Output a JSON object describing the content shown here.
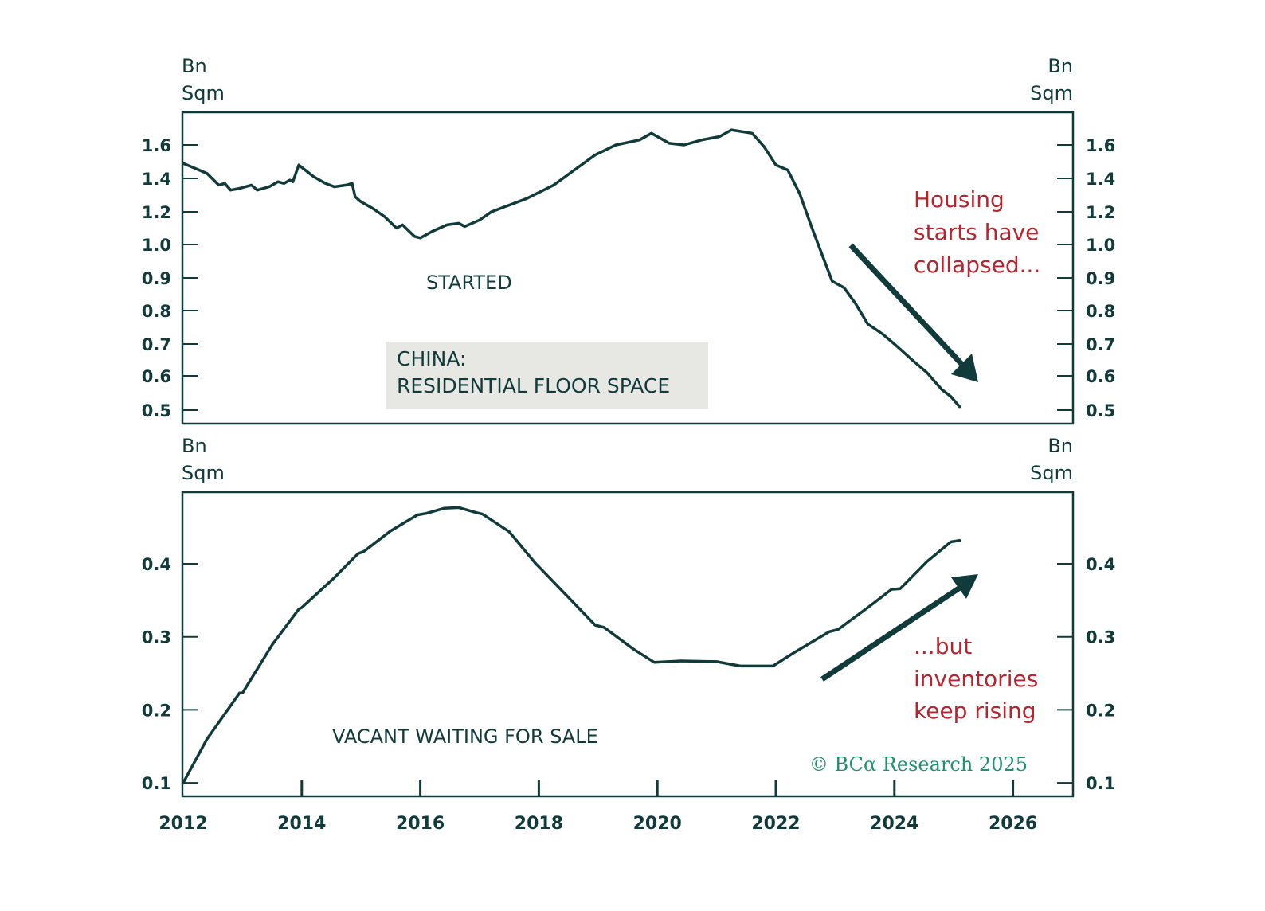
{
  "chart_data": [
    {
      "type": "line",
      "panel": "top",
      "title": "CHINA: RESIDENTIAL FLOOR SPACE",
      "title_lines": [
        "CHINA:",
        "RESIDENTIAL FLOOR SPACE"
      ],
      "series_label": "STARTED",
      "ylabel_left": [
        "Bn",
        "Sqm"
      ],
      "ylabel_right": [
        "Bn",
        "Sqm"
      ],
      "yticks": [
        1.6,
        1.4,
        1.2,
        1.0,
        0.9,
        0.8,
        0.7,
        0.6,
        0.5
      ],
      "ytick_labels": [
        "1.6",
        "1.4",
        "1.2",
        "1.0",
        "0.9",
        "0.8",
        "0.7",
        "0.6",
        "0.5"
      ],
      "yscale": "custom (tick-spaced)",
      "xlim": [
        2012,
        2027.5
      ],
      "grid": false,
      "annotation": {
        "lines": [
          "Housing",
          "starts have",
          "collapsed..."
        ],
        "color": "#b5252f",
        "arrow": "down-right"
      },
      "series": [
        {
          "name": "Started",
          "x": [
            2012.0,
            2012.2,
            2012.4,
            2012.6,
            2012.7,
            2012.8,
            2012.95,
            2013.15,
            2013.25,
            2013.45,
            2013.6,
            2013.7,
            2013.8,
            2013.85,
            2013.95,
            2014.2,
            2014.4,
            2014.55,
            2014.75,
            2014.85,
            2014.9,
            2015.0,
            2015.2,
            2015.4,
            2015.6,
            2015.7,
            2015.9,
            2016.0,
            2016.2,
            2016.45,
            2016.65,
            2016.75,
            2017.0,
            2017.2,
            2017.5,
            2017.8,
            2018.25,
            2018.6,
            2018.95,
            2019.3,
            2019.7,
            2019.9,
            2020.2,
            2020.45,
            2020.75,
            2021.05,
            2021.25,
            2021.6,
            2021.8,
            2022.0,
            2022.2,
            2022.4,
            2022.6,
            2022.8,
            2022.95,
            2023.15,
            2023.35,
            2023.55,
            2023.8,
            2024.0,
            2024.3,
            2024.55,
            2024.8,
            2024.95,
            2025.1
          ],
          "y": [
            1.49,
            1.46,
            1.43,
            1.36,
            1.37,
            1.33,
            1.34,
            1.36,
            1.33,
            1.35,
            1.38,
            1.37,
            1.39,
            1.38,
            1.48,
            1.41,
            1.37,
            1.35,
            1.36,
            1.37,
            1.29,
            1.26,
            1.22,
            1.17,
            1.1,
            1.12,
            1.05,
            1.04,
            1.08,
            1.12,
            1.13,
            1.11,
            1.15,
            1.2,
            1.24,
            1.28,
            1.36,
            1.45,
            1.54,
            1.6,
            1.63,
            1.67,
            1.61,
            1.6,
            1.63,
            1.65,
            1.69,
            1.67,
            1.59,
            1.48,
            1.45,
            1.31,
            1.11,
            0.96,
            0.89,
            0.87,
            0.82,
            0.76,
            0.73,
            0.7,
            0.65,
            0.61,
            0.56,
            0.54,
            0.51
          ]
        }
      ]
    },
    {
      "type": "line",
      "panel": "bottom",
      "series_label": "VACANT WAITING FOR SALE",
      "ylabel_left": [
        "Bn",
        "Sqm"
      ],
      "ylabel_right": [
        "Bn",
        "Sqm"
      ],
      "yticks": [
        0.4,
        0.3,
        0.2,
        0.1
      ],
      "ytick_labels": [
        "0.4",
        "0.3",
        "0.2",
        "0.1"
      ],
      "xticks": [
        2012,
        2014,
        2016,
        2018,
        2020,
        2022,
        2024,
        2026
      ],
      "xtick_labels": [
        "2012",
        "2014",
        "2016",
        "2018",
        "2020",
        "2022",
        "2024",
        "2026"
      ],
      "xlim": [
        2012,
        2027.5
      ],
      "ylim": [
        0.081,
        0.498
      ],
      "grid": false,
      "annotation": {
        "lines": [
          "...but",
          "inventories",
          "keep rising"
        ],
        "color": "#b5252f",
        "arrow": "up-right"
      },
      "series": [
        {
          "name": "Vacant waiting for sale",
          "x": [
            2012.0,
            2012.4,
            2012.95,
            2013.0,
            2013.5,
            2013.95,
            2014.0,
            2014.55,
            2014.95,
            2015.05,
            2015.5,
            2015.95,
            2016.1,
            2016.4,
            2016.65,
            2016.95,
            2017.05,
            2017.5,
            2017.95,
            2018.0,
            2018.5,
            2018.95,
            2019.1,
            2019.6,
            2019.95,
            2020.4,
            2021.0,
            2021.4,
            2021.95,
            2022.3,
            2022.9,
            2023.05,
            2023.6,
            2023.95,
            2024.1,
            2024.55,
            2024.95,
            2025.1
          ],
          "y": [
            0.1,
            0.16,
            0.223,
            0.223,
            0.289,
            0.338,
            0.34,
            0.381,
            0.414,
            0.417,
            0.445,
            0.467,
            0.469,
            0.476,
            0.477,
            0.47,
            0.468,
            0.444,
            0.4,
            0.396,
            0.354,
            0.316,
            0.313,
            0.283,
            0.265,
            0.267,
            0.266,
            0.26,
            0.26,
            0.278,
            0.307,
            0.31,
            0.343,
            0.365,
            0.366,
            0.403,
            0.43,
            0.432
          ]
        }
      ]
    }
  ],
  "labels": {
    "top_unit_left": [
      "Bn",
      "Sqm"
    ],
    "top_unit_right": [
      "Bn",
      "Sqm"
    ],
    "bottom_unit_left": [
      "Bn",
      "Sqm"
    ],
    "bottom_unit_right": [
      "Bn",
      "Sqm"
    ],
    "top_series": "STARTED",
    "bottom_series": "VACANT WAITING FOR SALE",
    "title_line1": "CHINA:",
    "title_line2": "RESIDENTIAL FLOOR SPACE",
    "annot_top": [
      "Housing",
      "starts have",
      "collapsed..."
    ],
    "annot_bottom": [
      "...but",
      "inventories",
      "keep rising"
    ],
    "copyright": "© BCα Research 2025"
  },
  "colors": {
    "line": "#113a3a",
    "annotation": "#b5252f",
    "copyright": "#1f9070",
    "title_box": "#e7e7e4"
  }
}
